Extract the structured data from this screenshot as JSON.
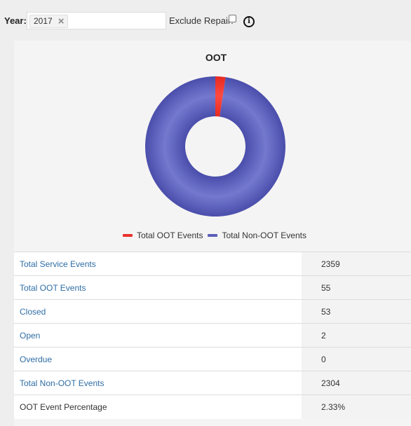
{
  "filters": {
    "year_label": "Year:",
    "year_value": "2017",
    "clear_symbol": "×",
    "exclude_repair_label": "Exclude Repair:",
    "exclude_repair_checked": false,
    "info_icon": "info-circle-icon",
    "info_glyph": "i"
  },
  "chart_data": {
    "type": "pie",
    "title": "OOT",
    "donut": true,
    "slices": [
      {
        "name": "Total OOT Events",
        "value": 55,
        "color": "#e8322b"
      },
      {
        "name": "Total Non-OOT Events",
        "value": 2304,
        "color": "#5b5fb8"
      }
    ],
    "legend_position": "bottom"
  },
  "stats": [
    {
      "label": "Total Service Events",
      "value": "2359",
      "link": true
    },
    {
      "label": "Total OOT Events",
      "value": "55",
      "link": true
    },
    {
      "label": "Closed",
      "value": "53",
      "link": true
    },
    {
      "label": "Open",
      "value": "2",
      "link": true
    },
    {
      "label": "Overdue",
      "value": "0",
      "link": true
    },
    {
      "label": "Total Non-OOT Events",
      "value": "2304",
      "link": true
    },
    {
      "label": "OOT Event Percentage",
      "value": "2.33%",
      "link": false
    }
  ]
}
